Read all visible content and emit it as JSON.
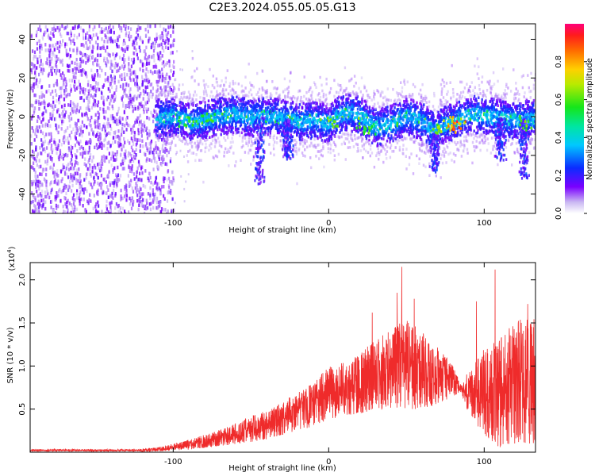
{
  "title": "C2E3.2024.055.05.05.G13",
  "chart_data": [
    {
      "type": "heatmap",
      "name": "doppler-spectrogram",
      "xlabel": "Height of straight line (km)",
      "ylabel": "Frequency (Hz)",
      "xlim": [
        -192,
        133
      ],
      "ylim": [
        -50,
        48
      ],
      "xticks": [
        "-100",
        "0",
        "100"
      ],
      "yticks": [
        "-40",
        "-20",
        "0",
        "20",
        "40"
      ],
      "colorbar": {
        "label": "Normalized spectral amplitude",
        "range": [
          0.0,
          1.0
        ],
        "ticks": [
          "0.0",
          "0.2",
          "0.4",
          "0.6",
          "0.8"
        ]
      },
      "noise_region_x": [
        -192,
        -100
      ],
      "ridge_y": [
        [
          -110,
          0
        ],
        [
          -100,
          1
        ],
        [
          -90,
          -2
        ],
        [
          -80,
          -1
        ],
        [
          -70,
          1
        ],
        [
          -60,
          2
        ],
        [
          -50,
          0
        ],
        [
          -40,
          1
        ],
        [
          -30,
          0
        ],
        [
          -20,
          -2
        ],
        [
          -10,
          -1
        ],
        [
          0,
          -3
        ],
        [
          5,
          1
        ],
        [
          10,
          3
        ],
        [
          20,
          1
        ],
        [
          30,
          -5
        ],
        [
          40,
          -3
        ],
        [
          50,
          1
        ],
        [
          60,
          -2
        ],
        [
          68,
          -8
        ],
        [
          72,
          -4
        ],
        [
          80,
          -2
        ],
        [
          90,
          2
        ],
        [
          100,
          1
        ],
        [
          110,
          0
        ],
        [
          120,
          -1
        ],
        [
          133,
          0
        ]
      ],
      "ridge_halfwidth_hz": 6,
      "dips": [
        {
          "x": -45,
          "min_y": -34
        },
        {
          "x": -27,
          "min_y": -22
        },
        {
          "x": 68,
          "min_y": -28
        },
        {
          "x": 110,
          "min_y": -22
        },
        {
          "x": 125,
          "min_y": -32
        }
      ]
    },
    {
      "type": "area",
      "name": "snr",
      "xlabel": "Height of straight line (km)",
      "ylabel": "SNR (10 * v/v)",
      "multiplier_label": "(x10",
      "multiplier_exp": "4",
      "xlim": [
        -192,
        133
      ],
      "ylim": [
        0.0,
        2.2
      ],
      "xticks": [
        "-100",
        "0",
        "100"
      ],
      "yticks": [
        "0.5",
        "1.0",
        "1.5",
        "2.0"
      ],
      "color": "#ef2b2b",
      "envelope": {
        "x": [
          -192,
          -120,
          -110,
          -100,
          -90,
          -80,
          -70,
          -60,
          -50,
          -40,
          -30,
          -20,
          -10,
          0,
          10,
          20,
          30,
          40,
          50,
          60,
          70,
          80,
          85,
          90,
          100,
          110,
          120,
          133
        ],
        "upper": [
          0.02,
          0.04,
          0.06,
          0.1,
          0.15,
          0.2,
          0.26,
          0.34,
          0.42,
          0.48,
          0.58,
          0.7,
          0.8,
          1.0,
          1.05,
          1.15,
          1.3,
          1.45,
          1.55,
          1.4,
          1.25,
          1.0,
          0.78,
          0.95,
          1.2,
          1.35,
          1.55,
          1.55
        ],
        "lower": [
          0.0,
          0.0,
          0.01,
          0.02,
          0.03,
          0.05,
          0.07,
          0.09,
          0.12,
          0.15,
          0.2,
          0.25,
          0.3,
          0.38,
          0.42,
          0.45,
          0.48,
          0.5,
          0.5,
          0.5,
          0.55,
          0.65,
          0.7,
          0.45,
          0.2,
          0.05,
          0.1,
          0.1
        ]
      },
      "peaks": [
        {
          "x": 28,
          "y": 1.62
        },
        {
          "x": 44,
          "y": 1.85
        },
        {
          "x": 47,
          "y": 2.15
        },
        {
          "x": 55,
          "y": 1.78
        },
        {
          "x": 107,
          "y": 2.12
        },
        {
          "x": 95,
          "y": 1.75
        },
        {
          "x": 128,
          "y": 1.72
        }
      ]
    }
  ]
}
